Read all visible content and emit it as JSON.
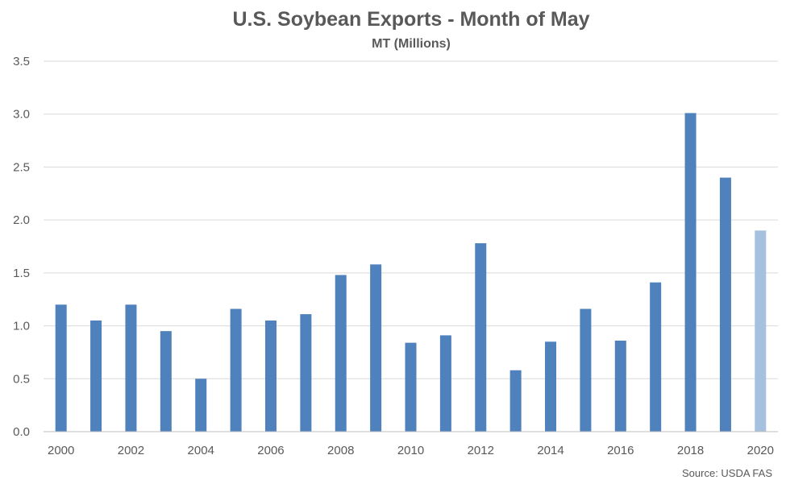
{
  "chart_data": {
    "type": "bar",
    "title": "U.S. Soybean Exports - Month of May",
    "subtitle": "MT (Millions)",
    "xlabel": "",
    "ylabel": "",
    "categories": [
      "2000",
      "2001",
      "2002",
      "2003",
      "2004",
      "2005",
      "2006",
      "2007",
      "2008",
      "2009",
      "2010",
      "2011",
      "2012",
      "2013",
      "2014",
      "2015",
      "2016",
      "2017",
      "2018",
      "2019",
      "2020"
    ],
    "x_tick_labels": [
      "2000",
      "2002",
      "2004",
      "2006",
      "2008",
      "2010",
      "2012",
      "2014",
      "2016",
      "2018",
      "2020"
    ],
    "values": [
      1.2,
      1.05,
      1.2,
      0.95,
      0.5,
      1.16,
      1.05,
      1.11,
      1.48,
      1.58,
      0.84,
      0.91,
      1.78,
      0.58,
      0.85,
      1.16,
      0.86,
      1.41,
      3.01,
      2.4,
      1.9
    ],
    "ylim": [
      0,
      3.5
    ],
    "y_ticks": [
      "0.0",
      "0.5",
      "1.0",
      "1.5",
      "2.0",
      "2.5",
      "3.0",
      "3.5"
    ],
    "grid": true,
    "colors": {
      "bar": "#4f81bd",
      "highlight": "#a6c1e0"
    },
    "highlight_categories": [
      "2020"
    ],
    "source": "Source: USDA FAS"
  }
}
